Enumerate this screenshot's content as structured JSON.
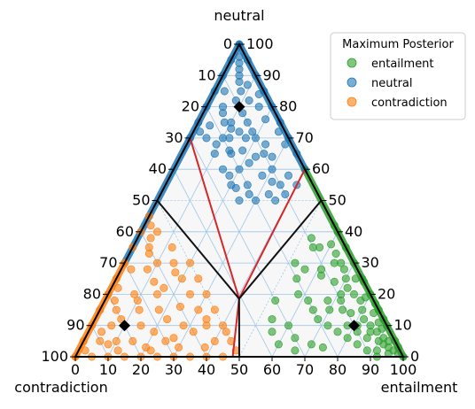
{
  "chart_data": {
    "type": "scatter",
    "subtype": "ternary",
    "axes": {
      "top": {
        "label": "neutral",
        "ticks": [
          0,
          10,
          20,
          30,
          40,
          50,
          60,
          70,
          80,
          90,
          100
        ]
      },
      "left": {
        "label": "contradiction",
        "ticks": [
          0,
          10,
          20,
          30,
          40,
          50,
          60,
          70,
          80,
          90,
          100
        ]
      },
      "right": {
        "label": "entailment",
        "ticks": [
          0,
          10,
          20,
          30,
          40,
          50,
          60,
          70,
          80,
          90,
          100
        ]
      }
    },
    "grid": true,
    "legend": {
      "title": "Maximum Posterior",
      "position": "top-right",
      "entries": [
        "entailment",
        "neutral",
        "contradiction"
      ]
    },
    "colors": {
      "entailment": "#2ca02c",
      "neutral": "#1f77b4",
      "contradiction": "#ff7f0e",
      "boundary": "#d62728",
      "frame": "#000000",
      "grid": "#9fc5e8",
      "background": "#f7f7f7"
    },
    "centroids": [
      {
        "entailment": 10,
        "neutral": 80,
        "contradiction": 10
      },
      {
        "entailment": 80,
        "neutral": 10,
        "contradiction": 10
      },
      {
        "entailment": 10,
        "neutral": 10,
        "contradiction": 80
      }
    ],
    "series": [
      {
        "name": "entailment",
        "points": [
          [
            52,
            30,
            18
          ],
          [
            55,
            35,
            10
          ],
          [
            60,
            36,
            4
          ],
          [
            64,
            30,
            6
          ],
          [
            70,
            25,
            5
          ],
          [
            75,
            20,
            5
          ],
          [
            80,
            15,
            5
          ],
          [
            85,
            10,
            5
          ],
          [
            88,
            8,
            4
          ],
          [
            90,
            5,
            5
          ],
          [
            92,
            4,
            4
          ],
          [
            94,
            3,
            3
          ],
          [
            96,
            2,
            2
          ],
          [
            98,
            1,
            1
          ],
          [
            100,
            0,
            0
          ],
          [
            95,
            5,
            0
          ],
          [
            90,
            10,
            0
          ],
          [
            85,
            15,
            0
          ],
          [
            80,
            20,
            0
          ],
          [
            75,
            25,
            0
          ],
          [
            70,
            30,
            0
          ],
          [
            65,
            35,
            0
          ],
          [
            60,
            40,
            0
          ],
          [
            58,
            42,
            0
          ],
          [
            66,
            30,
            4
          ],
          [
            72,
            22,
            6
          ],
          [
            78,
            18,
            4
          ],
          [
            82,
            12,
            6
          ],
          [
            86,
            8,
            6
          ],
          [
            91,
            6,
            3
          ],
          [
            58,
            20,
            22
          ],
          [
            62,
            18,
            20
          ],
          [
            65,
            15,
            20
          ],
          [
            68,
            12,
            20
          ],
          [
            72,
            10,
            18
          ],
          [
            76,
            8,
            16
          ],
          [
            80,
            6,
            14
          ],
          [
            84,
            4,
            12
          ],
          [
            88,
            2,
            10
          ],
          [
            62,
            26,
            12
          ],
          [
            67,
            24,
            9
          ],
          [
            72,
            18,
            10
          ],
          [
            77,
            14,
            9
          ],
          [
            81,
            10,
            9
          ],
          [
            55,
            25,
            20
          ],
          [
            60,
            10,
            30
          ],
          [
            64,
            6,
            30
          ],
          [
            70,
            4,
            26
          ],
          [
            74,
            3,
            23
          ],
          [
            86,
            6,
            8
          ],
          [
            84,
            14,
            2
          ],
          [
            79,
            19,
            2
          ],
          [
            73,
            25,
            2
          ],
          [
            68,
            28,
            4
          ],
          [
            63,
            33,
            4
          ],
          [
            70,
            15,
            15
          ],
          [
            74,
            15,
            11
          ],
          [
            78,
            10,
            12
          ],
          [
            82,
            8,
            10
          ],
          [
            87,
            11,
            2
          ],
          [
            54,
            12,
            34
          ],
          [
            56,
            8,
            36
          ],
          [
            60,
            4,
            36
          ],
          [
            66,
            2,
            32
          ],
          [
            91,
            2,
            7
          ],
          [
            93,
            5,
            2
          ],
          [
            89,
            9,
            2
          ],
          [
            57,
            35,
            8
          ],
          [
            53,
            38,
            9
          ],
          [
            61,
            28,
            11
          ],
          [
            92,
            0,
            8
          ],
          [
            95,
            1,
            4
          ],
          [
            97,
            3,
            0
          ],
          [
            76,
            24,
            0
          ],
          [
            83,
            17,
            0
          ],
          [
            52,
            18,
            30
          ],
          [
            56,
            28,
            16
          ],
          [
            68,
            18,
            14
          ],
          [
            71,
            20,
            9
          ],
          [
            88,
            12,
            0
          ]
        ]
      },
      {
        "name": "neutral",
        "points": [
          [
            0,
            100,
            0
          ],
          [
            2,
            96,
            2
          ],
          [
            5,
            90,
            5
          ],
          [
            10,
            80,
            10
          ],
          [
            8,
            85,
            7
          ],
          [
            6,
            88,
            6
          ],
          [
            4,
            92,
            4
          ],
          [
            3,
            94,
            3
          ],
          [
            12,
            78,
            10
          ],
          [
            15,
            75,
            10
          ],
          [
            18,
            72,
            10
          ],
          [
            20,
            70,
            10
          ],
          [
            25,
            65,
            10
          ],
          [
            30,
            60,
            10
          ],
          [
            35,
            55,
            10
          ],
          [
            38,
            52,
            10
          ],
          [
            10,
            70,
            20
          ],
          [
            15,
            65,
            20
          ],
          [
            20,
            60,
            20
          ],
          [
            25,
            55,
            20
          ],
          [
            30,
            50,
            20
          ],
          [
            5,
            80,
            15
          ],
          [
            8,
            75,
            17
          ],
          [
            12,
            70,
            18
          ],
          [
            18,
            66,
            16
          ],
          [
            22,
            62,
            16
          ],
          [
            28,
            58,
            14
          ],
          [
            32,
            56,
            12
          ],
          [
            15,
            60,
            25
          ],
          [
            20,
            55,
            25
          ],
          [
            25,
            50,
            25
          ],
          [
            10,
            65,
            25
          ],
          [
            5,
            70,
            25
          ],
          [
            2,
            72,
            26
          ],
          [
            10,
            75,
            15
          ],
          [
            14,
            72,
            14
          ],
          [
            24,
            68,
            8
          ],
          [
            28,
            64,
            8
          ],
          [
            36,
            58,
            6
          ],
          [
            40,
            55,
            5
          ],
          [
            12,
            82,
            6
          ],
          [
            16,
            80,
            4
          ],
          [
            20,
            76,
            4
          ],
          [
            26,
            72,
            2
          ],
          [
            30,
            68,
            2
          ],
          [
            8,
            82,
            10
          ],
          [
            9,
            87,
            4
          ],
          [
            14,
            84,
            2
          ],
          [
            3,
            85,
            12
          ],
          [
            6,
            78,
            16
          ],
          [
            0,
            95,
            5
          ],
          [
            0,
            90,
            10
          ],
          [
            0,
            85,
            15
          ],
          [
            0,
            80,
            20
          ],
          [
            0,
            75,
            25
          ],
          [
            0,
            70,
            30
          ],
          [
            5,
            95,
            0
          ],
          [
            10,
            90,
            0
          ],
          [
            15,
            85,
            0
          ],
          [
            20,
            80,
            0
          ],
          [
            25,
            75,
            0
          ],
          [
            30,
            70,
            0
          ],
          [
            35,
            65,
            0
          ],
          [
            40,
            60,
            0
          ],
          [
            4,
            74,
            22
          ],
          [
            9,
            68,
            23
          ],
          [
            18,
            58,
            24
          ],
          [
            22,
            54,
            24
          ],
          [
            27,
            52,
            21
          ],
          [
            33,
            52,
            15
          ],
          [
            36,
            50,
            14
          ],
          [
            14,
            66,
            20
          ],
          [
            17,
            70,
            13
          ],
          [
            23,
            64,
            13
          ],
          [
            11,
            73,
            16
          ]
        ]
      },
      {
        "name": "contradiction",
        "points": [
          [
            0,
            0,
            100
          ],
          [
            2,
            2,
            96
          ],
          [
            5,
            5,
            90
          ],
          [
            10,
            10,
            80
          ],
          [
            4,
            8,
            88
          ],
          [
            8,
            12,
            80
          ],
          [
            12,
            15,
            73
          ],
          [
            15,
            20,
            65
          ],
          [
            20,
            25,
            55
          ],
          [
            25,
            25,
            50
          ],
          [
            30,
            20,
            50
          ],
          [
            35,
            15,
            50
          ],
          [
            40,
            10,
            50
          ],
          [
            45,
            5,
            50
          ],
          [
            48,
            2,
            50
          ],
          [
            10,
            30,
            60
          ],
          [
            12,
            35,
            53
          ],
          [
            5,
            40,
            55
          ],
          [
            5,
            35,
            60
          ],
          [
            8,
            28,
            64
          ],
          [
            15,
            30,
            55
          ],
          [
            20,
            30,
            50
          ],
          [
            25,
            20,
            55
          ],
          [
            30,
            15,
            55
          ],
          [
            35,
            10,
            55
          ],
          [
            40,
            5,
            55
          ],
          [
            18,
            15,
            67
          ],
          [
            22,
            12,
            66
          ],
          [
            28,
            10,
            62
          ],
          [
            32,
            8,
            60
          ],
          [
            38,
            3,
            59
          ],
          [
            15,
            10,
            75
          ],
          [
            20,
            8,
            72
          ],
          [
            25,
            5,
            70
          ],
          [
            30,
            3,
            67
          ],
          [
            10,
            5,
            85
          ],
          [
            15,
            5,
            80
          ],
          [
            20,
            3,
            77
          ],
          [
            5,
            15,
            80
          ],
          [
            8,
            20,
            72
          ],
          [
            0,
            5,
            95
          ],
          [
            0,
            10,
            90
          ],
          [
            0,
            15,
            85
          ],
          [
            0,
            20,
            80
          ],
          [
            0,
            25,
            75
          ],
          [
            0,
            30,
            70
          ],
          [
            0,
            35,
            65
          ],
          [
            0,
            40,
            60
          ],
          [
            0,
            45,
            55
          ],
          [
            5,
            0,
            95
          ],
          [
            10,
            0,
            90
          ],
          [
            15,
            0,
            85
          ],
          [
            20,
            0,
            80
          ],
          [
            25,
            0,
            75
          ],
          [
            30,
            0,
            70
          ],
          [
            35,
            0,
            65
          ],
          [
            40,
            0,
            60
          ],
          [
            45,
            0,
            55
          ],
          [
            2,
            42,
            56
          ],
          [
            4,
            38,
            58
          ],
          [
            6,
            33,
            61
          ],
          [
            3,
            28,
            69
          ],
          [
            2,
            22,
            76
          ],
          [
            3,
            18,
            79
          ],
          [
            12,
            24,
            64
          ],
          [
            16,
            22,
            62
          ],
          [
            24,
            16,
            60
          ],
          [
            34,
            12,
            54
          ],
          [
            42,
            8,
            50
          ],
          [
            8,
            4,
            88
          ],
          [
            12,
            2,
            86
          ],
          [
            6,
            10,
            84
          ],
          [
            22,
            2,
            76
          ],
          [
            27,
            6,
            67
          ],
          [
            17,
            27,
            56
          ],
          [
            10,
            18,
            72
          ]
        ]
      }
    ]
  }
}
